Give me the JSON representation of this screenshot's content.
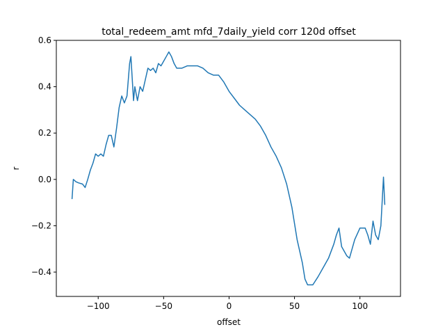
{
  "chart_data": {
    "type": "line",
    "title": "total_redeem_amt mfd_7daily_yield corr 120d offset",
    "x_label": "offset",
    "y_label": "r",
    "x": [
      -120,
      -119,
      -117,
      -115,
      -112,
      -110,
      -108,
      -106,
      -104,
      -102,
      -100,
      -98,
      -96,
      -94,
      -92,
      -90,
      -88,
      -86,
      -84,
      -82,
      -80,
      -78,
      -76,
      -75,
      -73,
      -72,
      -70,
      -68,
      -66,
      -64,
      -62,
      -60,
      -58,
      -56,
      -54,
      -52,
      -50,
      -48,
      -46,
      -44,
      -42,
      -40,
      -36,
      -32,
      -28,
      -24,
      -20,
      -16,
      -12,
      -8,
      -4,
      0,
      4,
      8,
      12,
      16,
      20,
      24,
      28,
      32,
      36,
      40,
      44,
      48,
      52,
      56,
      58,
      60,
      64,
      68,
      72,
      76,
      80,
      82,
      84,
      86,
      90,
      92,
      96,
      100,
      104,
      106,
      108,
      110,
      112,
      114,
      116,
      118,
      119
    ],
    "series": [
      {
        "name": "r",
        "color": "#1f77b4",
        "values": [
          -0.085,
          0.0,
          -0.01,
          -0.015,
          -0.02,
          -0.035,
          0.0,
          0.04,
          0.07,
          0.11,
          0.1,
          0.11,
          0.1,
          0.15,
          0.19,
          0.19,
          0.14,
          0.22,
          0.31,
          0.36,
          0.33,
          0.36,
          0.5,
          0.53,
          0.34,
          0.4,
          0.34,
          0.4,
          0.38,
          0.43,
          0.48,
          0.47,
          0.48,
          0.46,
          0.5,
          0.49,
          0.51,
          0.53,
          0.55,
          0.53,
          0.5,
          0.48,
          0.48,
          0.49,
          0.49,
          0.49,
          0.48,
          0.46,
          0.45,
          0.45,
          0.42,
          0.38,
          0.35,
          0.32,
          0.3,
          0.28,
          0.26,
          0.23,
          0.19,
          0.14,
          0.1,
          0.05,
          -0.02,
          -0.12,
          -0.26,
          -0.36,
          -0.43,
          -0.455,
          -0.455,
          -0.42,
          -0.38,
          -0.34,
          -0.28,
          -0.24,
          -0.21,
          -0.29,
          -0.33,
          -0.34,
          -0.26,
          -0.21,
          -0.21,
          -0.24,
          -0.28,
          -0.18,
          -0.24,
          -0.26,
          -0.2,
          0.01,
          -0.11
        ]
      }
    ],
    "xlim": [
      -132,
      131
    ],
    "ylim": [
      -0.505,
      0.6
    ],
    "xticks": [
      {
        "value": -100,
        "label": "−100"
      },
      {
        "value": -50,
        "label": "−50"
      },
      0,
      50,
      100
    ],
    "yticks": [
      {
        "value": -0.4,
        "label": "−0.4"
      },
      {
        "value": -0.2,
        "label": "−0.2"
      },
      {
        "value": 0,
        "label": "0.0"
      },
      0.2,
      0.4,
      0.6
    ]
  }
}
